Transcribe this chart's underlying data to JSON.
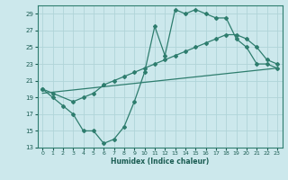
{
  "xlabel": "Humidex (Indice chaleur)",
  "bg_color": "#cce8ec",
  "line_color": "#2e7d6e",
  "grid_color": "#b0d4d8",
  "xlim": [
    -0.5,
    23.5
  ],
  "ylim": [
    13,
    30
  ],
  "yticks": [
    13,
    15,
    17,
    19,
    21,
    23,
    25,
    27,
    29
  ],
  "xticks": [
    0,
    1,
    2,
    3,
    4,
    5,
    6,
    7,
    8,
    9,
    10,
    11,
    12,
    13,
    14,
    15,
    16,
    17,
    18,
    19,
    20,
    21,
    22,
    23
  ],
  "line1_x": [
    0,
    1,
    2,
    3,
    4,
    5,
    6,
    7,
    8,
    9,
    10,
    11,
    12,
    13,
    14,
    15,
    16,
    17,
    18,
    19,
    20,
    21,
    22,
    23
  ],
  "line1_y": [
    20.0,
    19.0,
    18.0,
    17.0,
    15.0,
    15.0,
    13.5,
    14.0,
    15.5,
    18.5,
    22.0,
    27.5,
    24.0,
    29.5,
    29.0,
    29.5,
    29.0,
    28.5,
    28.5,
    26.0,
    25.0,
    23.0,
    23.0,
    22.5
  ],
  "line2_x": [
    0,
    1,
    3,
    4,
    5,
    6,
    7,
    8,
    9,
    10,
    11,
    12,
    13,
    14,
    15,
    16,
    17,
    18,
    19,
    20,
    21,
    22,
    23
  ],
  "line2_y": [
    20.0,
    19.5,
    18.5,
    19.0,
    19.5,
    20.5,
    21.0,
    21.5,
    22.0,
    22.5,
    23.0,
    23.5,
    24.0,
    24.5,
    25.0,
    25.5,
    26.0,
    26.5,
    26.5,
    26.0,
    25.0,
    23.5,
    23.0
  ],
  "line3_x": [
    0,
    23
  ],
  "line3_y": [
    19.5,
    22.5
  ]
}
